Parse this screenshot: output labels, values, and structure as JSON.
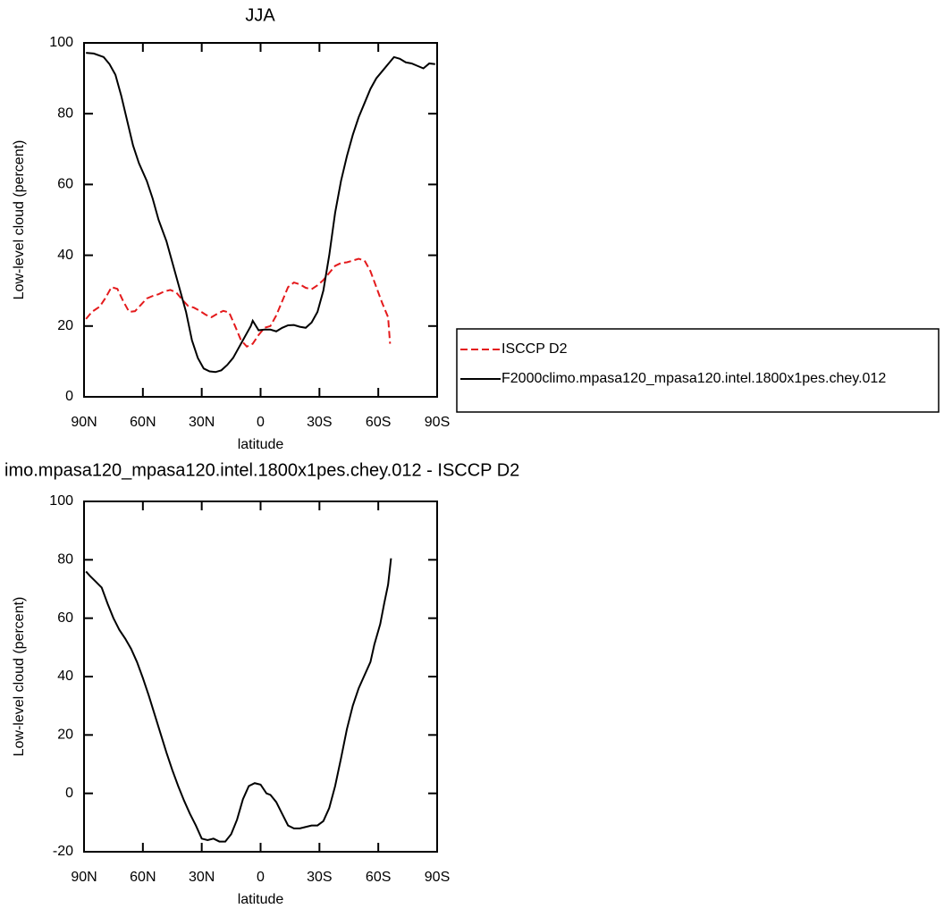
{
  "chart_data": [
    {
      "type": "line",
      "title": "JJA",
      "xlabel": "latitude",
      "ylabel": "Low-level cloud (percent)",
      "xlim": [
        90,
        -90
      ],
      "xticks": [
        {
          "value": 90,
          "label": "90N"
        },
        {
          "value": 60,
          "label": "60N"
        },
        {
          "value": 30,
          "label": "30N"
        },
        0,
        {
          "value": -30,
          "label": "30S"
        },
        {
          "value": -60,
          "label": "60S"
        },
        {
          "value": -90,
          "label": "90S"
        }
      ],
      "ylim": [
        0,
        100
      ],
      "yticks": [
        0,
        20,
        40,
        60,
        80,
        100
      ],
      "legend": "right",
      "series": [
        {
          "name": "ISCCP D2",
          "color": "#e41a1c",
          "dash": true,
          "x": [
            89,
            86,
            82,
            79,
            76,
            73,
            70,
            67,
            64,
            61,
            58,
            55,
            52,
            49,
            46,
            43,
            40,
            37,
            34,
            31,
            28,
            25,
            22,
            19,
            16,
            13,
            10,
            7,
            4,
            1,
            -2,
            -5,
            -8,
            -11,
            -14,
            -17,
            -20,
            -23,
            -26,
            -29,
            -32,
            -35,
            -38,
            -41,
            -44,
            -47,
            -50,
            -53,
            -56,
            -59,
            -62,
            -65,
            -66
          ],
          "values": [
            22,
            24,
            25.5,
            28,
            31,
            30.5,
            27,
            24,
            24.2,
            26,
            27.8,
            28.5,
            29,
            29.8,
            30.2,
            29.5,
            27.5,
            25.7,
            25.2,
            24.3,
            23.2,
            22.5,
            23.5,
            24.3,
            23.8,
            20,
            16,
            14.2,
            15,
            17.5,
            19.5,
            20,
            23,
            27,
            31,
            32.3,
            31.8,
            30.8,
            30.4,
            31.5,
            33,
            35,
            37,
            37.8,
            38,
            38.5,
            39,
            38.5,
            35.5,
            31,
            26.5,
            22.5,
            15
          ]
        },
        {
          "name": "F2000climo.mpasa120_mpasa120.intel.1800x1pes.chey.012",
          "color": "#000000",
          "dash": false,
          "x": [
            89,
            85,
            80,
            77,
            74,
            71,
            68,
            65,
            62,
            58,
            55,
            52,
            48,
            45,
            42,
            38,
            35,
            32,
            29,
            26,
            23,
            20,
            17,
            14,
            11,
            8,
            5,
            4,
            1,
            -2,
            -5,
            -8,
            -11,
            -14,
            -17,
            -20,
            -23,
            -26,
            -29,
            -32,
            -35,
            -38,
            -41,
            -44,
            -47,
            -50,
            -53,
            -56,
            -59,
            -62,
            -65,
            -68,
            -71,
            -74,
            -77,
            -80,
            -83,
            -86,
            -89
          ],
          "values": [
            97.2,
            97,
            96,
            94,
            91,
            85,
            78,
            71,
            66,
            61,
            56,
            50,
            44,
            38,
            32,
            24,
            16,
            11,
            8,
            7.2,
            7,
            7.5,
            9,
            11,
            14,
            17,
            20,
            21.5,
            18.8,
            19,
            19,
            18.5,
            19.5,
            20.2,
            20.3,
            19.8,
            19.5,
            21,
            24,
            30,
            40,
            52,
            61,
            68,
            74,
            79,
            83,
            87,
            90,
            92,
            94,
            96,
            95.5,
            94.5,
            94.2,
            93.5,
            92.8,
            94.2,
            94
          ]
        }
      ]
    },
    {
      "type": "line",
      "title": "imo.mpasa120_mpasa120.intel.1800x1pes.chey.012 - ISCCP D2",
      "xlabel": "latitude",
      "ylabel": "Low-level cloud (percent)",
      "xlim": [
        90,
        -90
      ],
      "xticks": [
        {
          "value": 90,
          "label": "90N"
        },
        {
          "value": 60,
          "label": "60N"
        },
        {
          "value": 30,
          "label": "30N"
        },
        0,
        {
          "value": -30,
          "label": "30S"
        },
        {
          "value": -60,
          "label": "60S"
        },
        {
          "value": -90,
          "label": "90S"
        }
      ],
      "ylim": [
        -20,
        100
      ],
      "yticks": [
        -20,
        0,
        20,
        40,
        60,
        80,
        100
      ],
      "series": [
        {
          "color": "#000000",
          "dash": false,
          "x": [
            89,
            87,
            84,
            81,
            78,
            75,
            72,
            69,
            66,
            63,
            60,
            57,
            54,
            51,
            48,
            45,
            42,
            39,
            36,
            33,
            30,
            27,
            24,
            21,
            18,
            15,
            12,
            9,
            6,
            3,
            0,
            -3,
            -5,
            -8,
            -11,
            -14,
            -17,
            -20,
            -23,
            -26,
            -29,
            -32,
            -35,
            -38,
            -41,
            -44,
            -47,
            -50,
            -53,
            -56,
            -58,
            -61,
            -63,
            -65,
            -66.5
          ],
          "values": [
            76,
            74.5,
            72.5,
            70.5,
            65,
            60,
            56,
            53,
            49.5,
            45,
            39.5,
            33.5,
            27,
            20.5,
            14,
            8,
            2.5,
            -2.5,
            -7,
            -11,
            -15.5,
            -16,
            -15.5,
            -16.5,
            -16.5,
            -14,
            -9,
            -2,
            2.5,
            3.5,
            3,
            0,
            -0.5,
            -3,
            -7,
            -11,
            -12,
            -12,
            -11.5,
            -11,
            -11,
            -9.5,
            -5,
            2.5,
            12,
            22,
            30,
            36,
            40.5,
            45,
            51,
            58,
            65,
            71.5,
            80.5
          ]
        }
      ]
    }
  ]
}
